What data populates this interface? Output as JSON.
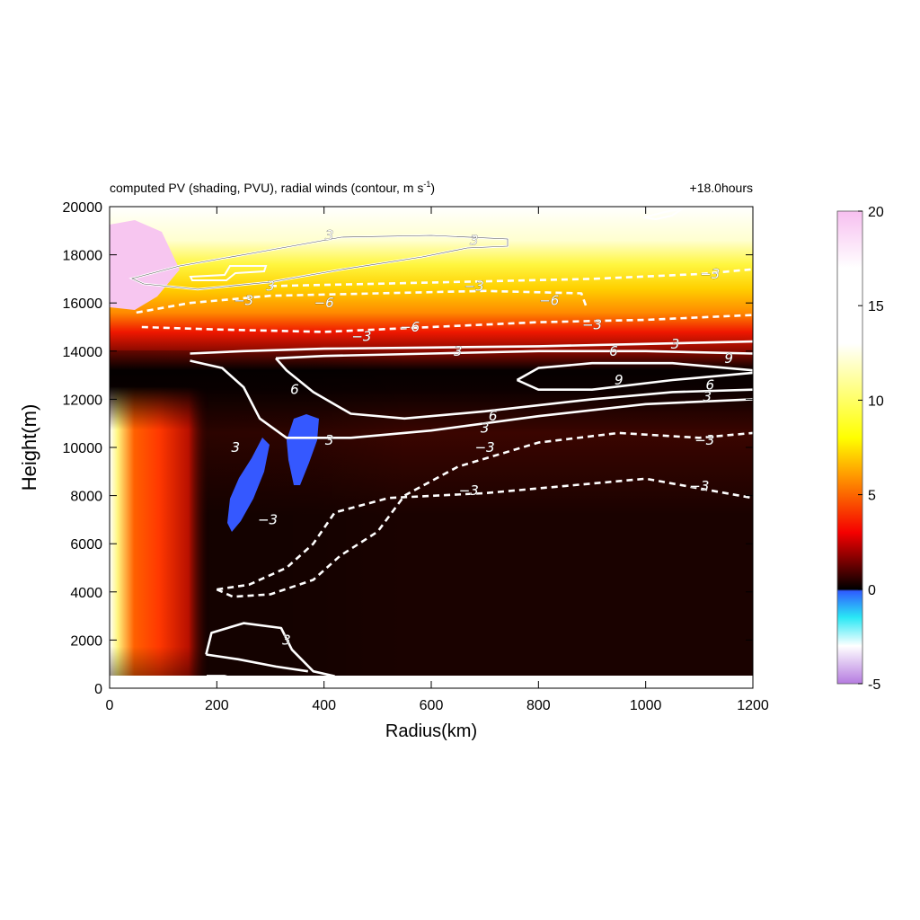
{
  "chart_data": {
    "type": "heatmap",
    "title": "computed PV (shading, PVU), radial winds (contour, m s",
    "title_sup": "-1",
    "title_close": ")",
    "time_label": "+18.0hours",
    "xlabel": "Radius(km)",
    "ylabel": "Height(m)",
    "xlim": [
      0,
      1200
    ],
    "ylim": [
      0,
      20000
    ],
    "x_ticks": [
      0,
      200,
      400,
      600,
      800,
      1000,
      1200
    ],
    "y_ticks": [
      0,
      2000,
      4000,
      6000,
      8000,
      10000,
      12000,
      14000,
      16000,
      18000,
      20000
    ],
    "colorbar": {
      "min": -5,
      "max": 20,
      "ticks": [
        -5,
        0,
        5,
        10,
        15,
        20
      ],
      "stops": [
        {
          "v": -5,
          "color": "#b57be0"
        },
        {
          "v": -3,
          "color": "#ffffff"
        },
        {
          "v": -1.5,
          "color": "#2ae8f5"
        },
        {
          "v": -0.1,
          "color": "#2f5cff"
        },
        {
          "v": 0,
          "color": "#000000"
        },
        {
          "v": 3,
          "color": "#f50000"
        },
        {
          "v": 6,
          "color": "#ff9900"
        },
        {
          "v": 8,
          "color": "#ffff00"
        },
        {
          "v": 13,
          "color": "#ffffff"
        },
        {
          "v": 17,
          "color": "#ffffff"
        },
        {
          "v": 20,
          "color": "#f7bff0"
        }
      ]
    },
    "contours": [
      {
        "level": 3,
        "style": "solid",
        "points": [
          [
            150,
            13900
          ],
          [
            250,
            14000
          ],
          [
            400,
            14100
          ],
          [
            600,
            14150
          ],
          [
            800,
            14200
          ],
          [
            1000,
            14300
          ],
          [
            1200,
            14400
          ]
        ]
      },
      {
        "level": 3,
        "style": "solid",
        "points": [
          [
            150,
            13600
          ],
          [
            210,
            13300
          ],
          [
            250,
            12500
          ],
          [
            280,
            11200
          ],
          [
            330,
            10400
          ],
          [
            450,
            10400
          ],
          [
            600,
            10700
          ],
          [
            800,
            11300
          ],
          [
            1000,
            11800
          ],
          [
            1200,
            12000
          ]
        ]
      },
      {
        "level": 6,
        "style": "solid",
        "points": [
          [
            310,
            13700
          ],
          [
            400,
            13800
          ],
          [
            600,
            13900
          ],
          [
            800,
            14000
          ],
          [
            1000,
            14000
          ],
          [
            1200,
            13900
          ]
        ]
      },
      {
        "level": 6,
        "style": "solid",
        "points": [
          [
            310,
            13700
          ],
          [
            330,
            13200
          ],
          [
            380,
            12300
          ],
          [
            450,
            11400
          ],
          [
            550,
            11200
          ],
          [
            700,
            11500
          ],
          [
            900,
            12000
          ],
          [
            1050,
            12300
          ],
          [
            1200,
            12400
          ]
        ]
      },
      {
        "level": 9,
        "style": "solid",
        "points": [
          [
            760,
            12800
          ],
          [
            800,
            13300
          ],
          [
            900,
            13500
          ],
          [
            1050,
            13500
          ],
          [
            1150,
            13300
          ],
          [
            1200,
            13200
          ]
        ]
      },
      {
        "level": 9,
        "style": "solid",
        "points": [
          [
            760,
            12800
          ],
          [
            800,
            12400
          ],
          [
            900,
            12400
          ],
          [
            1050,
            12800
          ],
          [
            1200,
            13100
          ]
        ]
      },
      {
        "level": 3,
        "style": "solid",
        "points": [
          [
            180,
            1400
          ],
          [
            190,
            2300
          ],
          [
            250,
            2700
          ],
          [
            320,
            2500
          ],
          [
            340,
            1600
          ],
          [
            380,
            700
          ],
          [
            420,
            500
          ]
        ]
      },
      {
        "level": 3,
        "style": "solid",
        "points": [
          [
            180,
            1400
          ],
          [
            240,
            1200
          ],
          [
            310,
            900
          ],
          [
            370,
            700
          ]
        ]
      },
      {
        "level": -3,
        "style": "dashed",
        "points": [
          [
            200,
            4100
          ],
          [
            260,
            4300
          ],
          [
            330,
            5000
          ],
          [
            380,
            6000
          ],
          [
            420,
            7300
          ],
          [
            520,
            7900
          ],
          [
            700,
            8100
          ],
          [
            850,
            8400
          ],
          [
            1000,
            8700
          ],
          [
            1100,
            8300
          ],
          [
            1200,
            7900
          ]
        ]
      },
      {
        "level": -3,
        "style": "dashed",
        "points": [
          [
            200,
            4100
          ],
          [
            230,
            3800
          ],
          [
            300,
            3900
          ],
          [
            380,
            4500
          ],
          [
            430,
            5500
          ],
          [
            500,
            6500
          ],
          [
            550,
            8000
          ],
          [
            650,
            9200
          ],
          [
            800,
            10200
          ],
          [
            950,
            10600
          ],
          [
            1100,
            10400
          ],
          [
            1200,
            10600
          ]
        ]
      },
      {
        "level": -3,
        "style": "dashed",
        "points": [
          [
            60,
            15000
          ],
          [
            200,
            14900
          ],
          [
            400,
            14800
          ],
          [
            600,
            15000
          ],
          [
            800,
            15200
          ],
          [
            1000,
            15300
          ],
          [
            1200,
            15500
          ]
        ]
      },
      {
        "level": -6,
        "style": "dashed",
        "points": [
          [
            50,
            15600
          ],
          [
            150,
            16000
          ],
          [
            300,
            16300
          ],
          [
            500,
            16400
          ],
          [
            700,
            16500
          ],
          [
            880,
            16400
          ],
          [
            890,
            15800
          ]
        ]
      },
      {
        "level": -3,
        "style": "dashed",
        "points": [
          [
            300,
            16700
          ],
          [
            500,
            16800
          ],
          [
            700,
            16900
          ],
          [
            900,
            17000
          ],
          [
            1100,
            17200
          ],
          [
            1200,
            17400
          ]
        ]
      }
    ],
    "labels": [
      {
        "text": "3",
        "x": 410,
        "y": 10300
      },
      {
        "text": "3",
        "x": 235,
        "y": 10000
      },
      {
        "text": "3",
        "x": 650,
        "y": 14000
      },
      {
        "text": "6",
        "x": 940,
        "y": 14000
      },
      {
        "text": "3",
        "x": 1055,
        "y": 14300
      },
      {
        "text": "9",
        "x": 1155,
        "y": 13700
      },
      {
        "text": "9",
        "x": 950,
        "y": 12800
      },
      {
        "text": "6",
        "x": 1120,
        "y": 12600
      },
      {
        "text": "3",
        "x": 1115,
        "y": 12100
      },
      {
        "text": "6",
        "x": 345,
        "y": 12400
      },
      {
        "text": "6",
        "x": 715,
        "y": 11300
      },
      {
        "text": "3",
        "x": 700,
        "y": 10800
      },
      {
        "text": "−3",
        "x": 700,
        "y": 10000
      },
      {
        "text": "−3",
        "x": 670,
        "y": 8200
      },
      {
        "text": "−3",
        "x": 295,
        "y": 7000
      },
      {
        "text": "3",
        "x": 330,
        "y": 2000
      },
      {
        "text": "−3",
        "x": 1110,
        "y": 10300
      },
      {
        "text": "−3",
        "x": 1100,
        "y": 8400
      },
      {
        "text": "−3",
        "x": 470,
        "y": 14600
      },
      {
        "text": "−6",
        "x": 560,
        "y": 15000
      },
      {
        "text": "−3",
        "x": 900,
        "y": 15100
      },
      {
        "text": "−6",
        "x": 400,
        "y": 16000
      },
      {
        "text": "−3",
        "x": 250,
        "y": 16100
      },
      {
        "text": "−6",
        "x": 820,
        "y": 16100
      },
      {
        "text": "−3",
        "x": 680,
        "y": 16700
      },
      {
        "text": "−3",
        "x": 1120,
        "y": 17200
      },
      {
        "text": "3",
        "x": 300,
        "y": 16700
      },
      {
        "text": "3",
        "x": 410,
        "y": 18800
      },
      {
        "text": "3",
        "x": 680,
        "y": 18600
      }
    ]
  }
}
